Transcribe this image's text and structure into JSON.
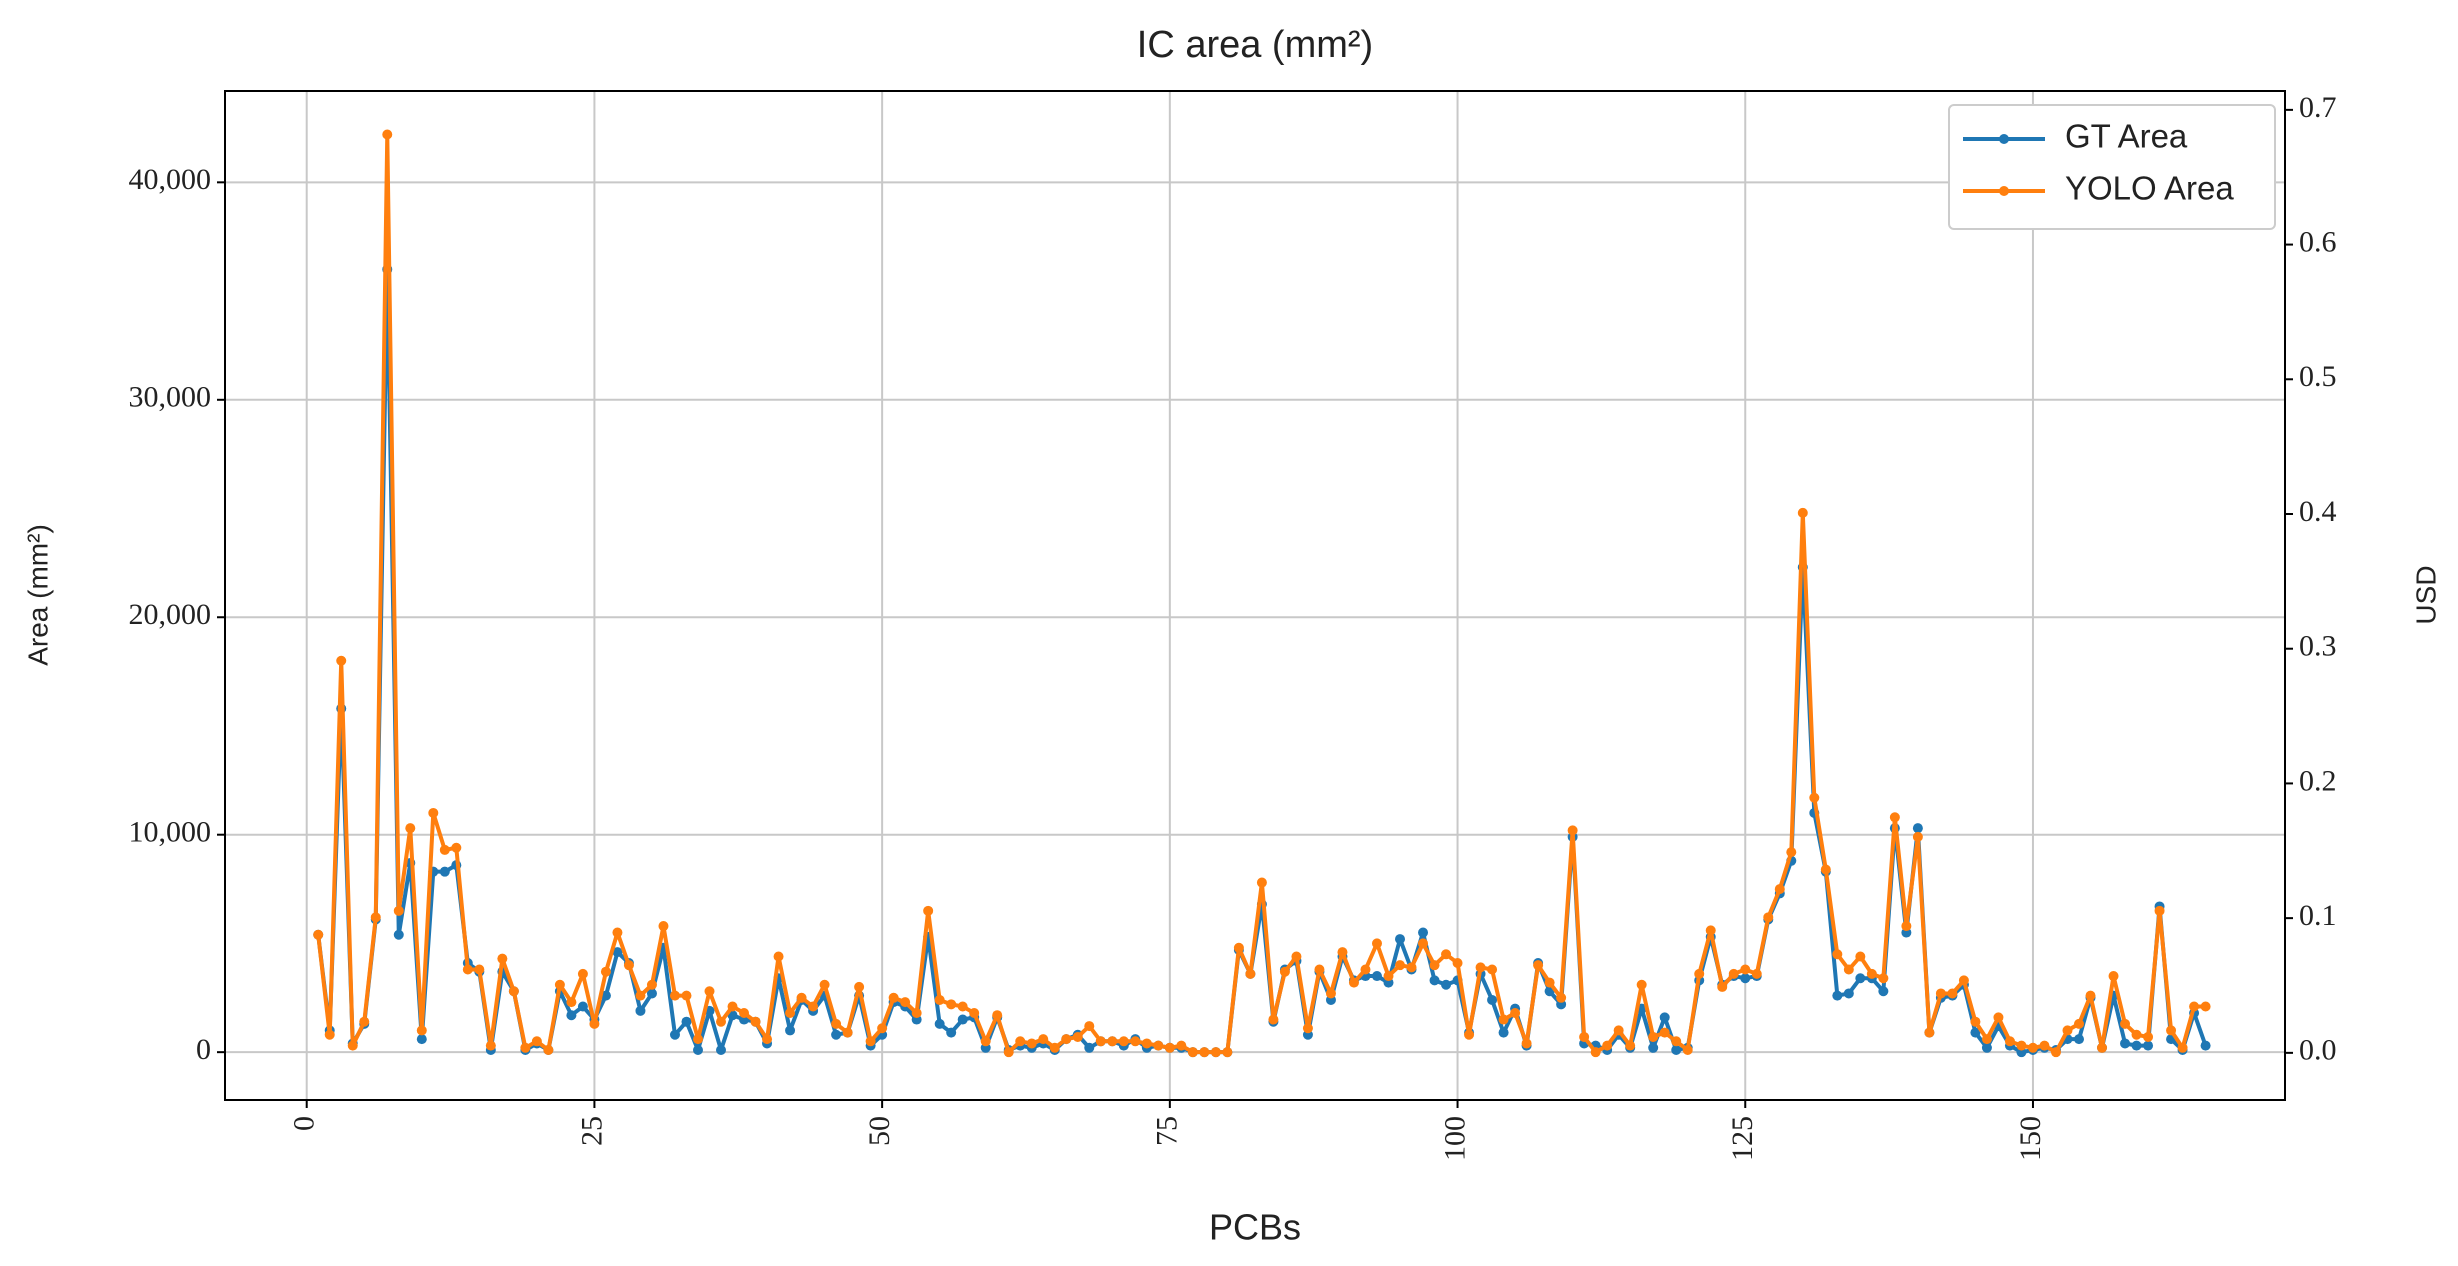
{
  "chart_data": {
    "type": "line",
    "title": "IC area (mm²)",
    "x_label": "PCBs",
    "y_label": "Area (mm²)",
    "y2_label": "USD",
    "x": [
      1,
      2,
      3,
      4,
      5,
      6,
      7,
      8,
      9,
      10,
      11,
      12,
      13,
      14,
      15,
      16,
      17,
      18,
      19,
      20,
      21,
      22,
      23,
      24,
      25,
      26,
      27,
      28,
      29,
      30,
      31,
      32,
      33,
      34,
      35,
      36,
      37,
      38,
      39,
      40,
      41,
      42,
      43,
      44,
      45,
      46,
      47,
      48,
      49,
      50,
      51,
      52,
      53,
      54,
      55,
      56,
      57,
      58,
      59,
      60,
      61,
      62,
      63,
      64,
      65,
      66,
      67,
      68,
      69,
      70,
      71,
      72,
      73,
      74,
      75,
      76,
      77,
      78,
      79,
      80,
      81,
      82,
      83,
      84,
      85,
      86,
      87,
      88,
      89,
      90,
      91,
      92,
      93,
      94,
      95,
      96,
      97,
      98,
      99,
      100,
      101,
      102,
      103,
      104,
      105,
      106,
      107,
      108,
      109,
      110,
      111,
      112,
      113,
      114,
      115,
      116,
      117,
      118,
      119,
      120,
      121,
      122,
      123,
      124,
      125,
      126,
      127,
      128,
      129,
      130,
      131,
      132,
      133,
      134,
      135,
      136,
      137,
      138,
      139,
      140,
      141,
      142,
      143,
      144,
      145,
      146,
      147,
      148,
      149,
      150,
      151,
      152,
      153,
      154,
      155,
      156,
      157,
      158,
      159,
      160,
      161,
      162,
      163,
      164,
      165
    ],
    "series": [
      {
        "name": "GT Area",
        "color": "#1f77b4",
        "values": [
          5400,
          1000,
          15800,
          400,
          1300,
          6100,
          36000,
          5400,
          8700,
          600,
          8300,
          8300,
          8600,
          4100,
          3700,
          100,
          3700,
          2800,
          100,
          400,
          100,
          2800,
          1700,
          2100,
          1500,
          2600,
          4600,
          4100,
          1900,
          2700,
          4800,
          800,
          1400,
          100,
          1900,
          100,
          1700,
          1500,
          1400,
          400,
          3400,
          1000,
          2400,
          1900,
          2600,
          800,
          900,
          2600,
          300,
          800,
          2300,
          2100,
          1500,
          5300,
          1300,
          900,
          1500,
          1600,
          200,
          1600,
          100,
          300,
          200,
          400,
          100,
          600,
          800,
          200,
          500,
          500,
          300,
          600,
          200,
          300,
          200,
          200,
          0,
          0,
          0,
          0,
          4700,
          3600,
          6800,
          1400,
          3800,
          4200,
          800,
          3700,
          2400,
          4400,
          3300,
          3500,
          3500,
          3200,
          5200,
          3800,
          5500,
          3300,
          3100,
          3300,
          900,
          3600,
          2400,
          900,
          2000,
          300,
          4100,
          2800,
          2200,
          9900,
          400,
          300,
          100,
          800,
          200,
          2000,
          200,
          1600,
          100,
          200,
          3300,
          5300,
          3100,
          3500,
          3400,
          3500,
          6100,
          7300,
          8800,
          22300,
          11000,
          8300,
          2600,
          2700,
          3400,
          3400,
          2800,
          10300,
          5500,
          10300,
          900,
          2500,
          2600,
          3100,
          900,
          200,
          1200,
          300,
          0,
          100,
          200,
          100,
          600,
          600,
          2500,
          200,
          2600,
          400,
          300,
          300,
          6700,
          600,
          100,
          1800,
          300
        ]
      },
      {
        "name": "YOLO Area",
        "color": "#ff7f0e",
        "values": [
          5400,
          800,
          18000,
          300,
          1400,
          6200,
          42200,
          6500,
          10300,
          1000,
          11000,
          9300,
          9400,
          3800,
          3800,
          300,
          4300,
          2800,
          200,
          500,
          100,
          3100,
          2300,
          3600,
          1300,
          3700,
          5500,
          4000,
          2600,
          3100,
          5800,
          2600,
          2600,
          600,
          2800,
          1400,
          2100,
          1800,
          1400,
          600,
          4400,
          1800,
          2500,
          2100,
          3100,
          1300,
          900,
          3000,
          500,
          1100,
          2500,
          2300,
          1800,
          6500,
          2400,
          2200,
          2100,
          1800,
          500,
          1700,
          0,
          500,
          400,
          600,
          200,
          600,
          700,
          1200,
          500,
          500,
          500,
          500,
          400,
          300,
          200,
          300,
          0,
          0,
          0,
          0,
          4800,
          3600,
          7800,
          1500,
          3700,
          4400,
          1100,
          3800,
          2700,
          4600,
          3200,
          3800,
          5000,
          3500,
          4000,
          3900,
          5000,
          4000,
          4500,
          4100,
          800,
          3900,
          3800,
          1500,
          1800,
          400,
          4000,
          3200,
          2500,
          10200,
          700,
          0,
          300,
          1000,
          300,
          3100,
          700,
          900,
          500,
          100,
          3600,
          5600,
          3000,
          3600,
          3800,
          3600,
          6200,
          7500,
          9200,
          24800,
          11700,
          8400,
          4500,
          3800,
          4400,
          3600,
          3400,
          10800,
          5800,
          9900,
          900,
          2700,
          2700,
          3300,
          1400,
          600,
          1600,
          500,
          300,
          200,
          300,
          0,
          1000,
          1300,
          2600,
          200,
          3500,
          1300,
          800,
          700,
          6500,
          1000,
          200,
          2100,
          2100
        ]
      }
    ],
    "xlim": [
      -7.1,
      171.9
    ],
    "xticks": [
      0,
      25,
      50,
      75,
      100,
      125,
      150
    ],
    "ylim": [
      -2200,
      44200
    ],
    "yticks": [
      0,
      {
        "value": 10000,
        "label": "10,000"
      },
      {
        "value": 20000,
        "label": "20,000"
      },
      {
        "value": 30000,
        "label": "30,000"
      },
      {
        "value": 40000,
        "label": "40,000"
      }
    ],
    "y2lim": [
      -0.035,
      0.714
    ],
    "y2ticks": [
      {
        "value": 0,
        "label": "0.0"
      },
      0.1,
      0.2,
      0.3,
      0.4,
      0.5,
      0.6,
      0.7
    ],
    "grid": true,
    "legend": "upper right"
  }
}
